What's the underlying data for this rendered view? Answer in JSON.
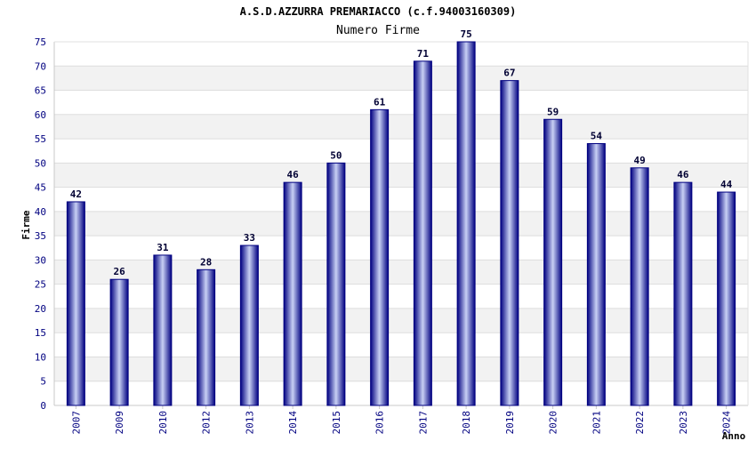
{
  "chart_data": {
    "type": "bar",
    "title": "A.S.D.AZZURRA PREMARIACCO (c.f.94003160309)",
    "subtitle": "Numero Firme",
    "xlabel": "Anno",
    "ylabel": "Firme",
    "ylim": [
      0,
      75
    ],
    "yticks": [
      0,
      5,
      10,
      15,
      20,
      25,
      30,
      35,
      40,
      45,
      50,
      55,
      60,
      65,
      70,
      75
    ],
    "categories": [
      "2007",
      "2009",
      "2010",
      "2012",
      "2013",
      "2014",
      "2015",
      "2016",
      "2017",
      "2018",
      "2019",
      "2020",
      "2021",
      "2022",
      "2023",
      "2024"
    ],
    "values": [
      42,
      26,
      31,
      28,
      33,
      46,
      50,
      61,
      71,
      75,
      67,
      59,
      54,
      49,
      46,
      44
    ],
    "grid": true,
    "colors": {
      "bar_dark": "#000080",
      "bar_light": "#c8d0f4",
      "band": "#f2f2f2",
      "grid": "#dddddd"
    }
  }
}
